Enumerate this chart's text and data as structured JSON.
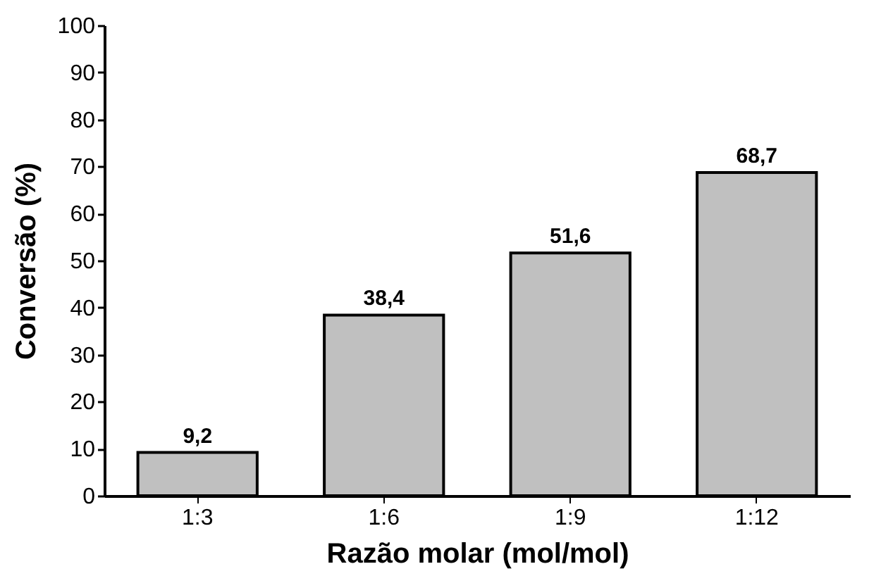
{
  "chart_data": {
    "type": "bar",
    "xlabel": "Razão molar (mol/mol)",
    "ylabel": "Conversão (%)",
    "categories": [
      "1:3",
      "1:6",
      "1:9",
      "1:12"
    ],
    "values": [
      9.2,
      38.4,
      51.6,
      68.7
    ],
    "value_labels": [
      "9,2",
      "38,4",
      "51,6",
      "68,7"
    ],
    "color": "#c0c0c0",
    "ylim": [
      0,
      100
    ],
    "yticks": [
      0,
      10,
      20,
      30,
      40,
      50,
      60,
      70,
      80,
      90,
      100
    ],
    "grid": false
  }
}
